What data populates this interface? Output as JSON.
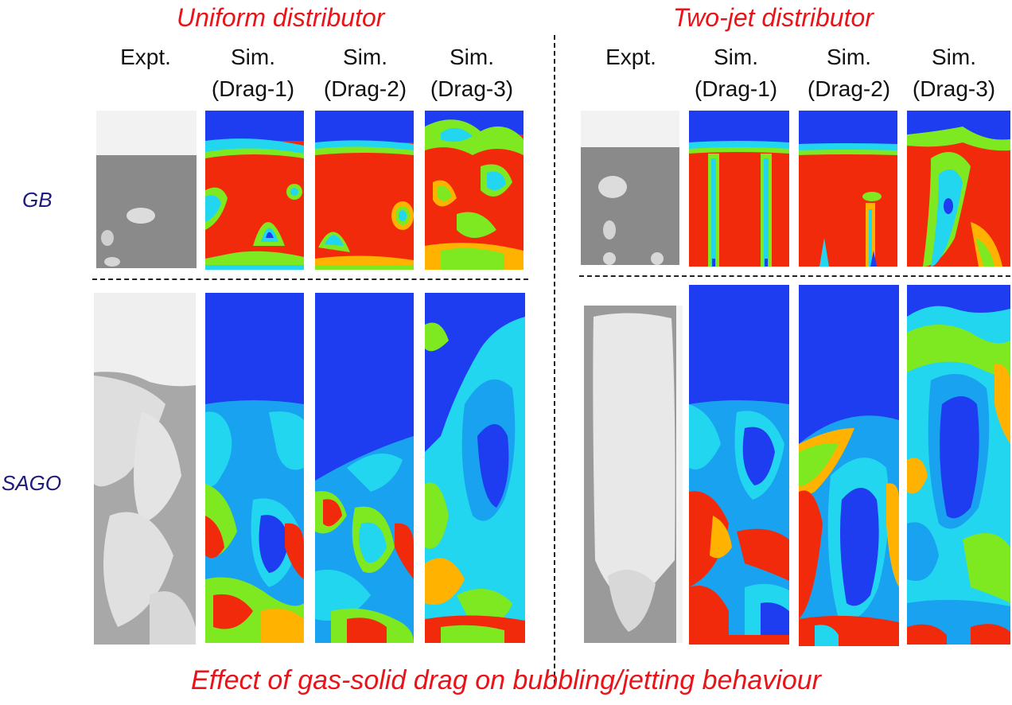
{
  "groups": {
    "uniform": {
      "title": "Uniform distributor",
      "columns": [
        {
          "line1": "",
          "line2": "Expt."
        },
        {
          "line1": "Sim.",
          "line2": "(Drag-1)"
        },
        {
          "line1": "Sim.",
          "line2": "(Drag-2)"
        },
        {
          "line1": "Sim.",
          "line2": "(Drag-3)"
        }
      ]
    },
    "twojet": {
      "title": "Two-jet distributor",
      "columns": [
        {
          "line1": "",
          "line2": "Expt."
        },
        {
          "line1": "Sim.",
          "line2": "(Drag-1)"
        },
        {
          "line1": "Sim.",
          "line2": "(Drag-2)"
        },
        {
          "line1": "Sim.",
          "line2": "(Drag-3)"
        }
      ]
    }
  },
  "rows": {
    "gb": {
      "label": "GB"
    },
    "sago": {
      "label": "SAGO"
    }
  },
  "caption": "Effect of gas-solid drag on bubbling/jetting behaviour",
  "colors": {
    "title_red": "#e8141a",
    "row_label_navy": "#1c1a7a",
    "contour_gas_blue": "#1e3cf0",
    "contour_solid_red": "#f22a0c"
  }
}
